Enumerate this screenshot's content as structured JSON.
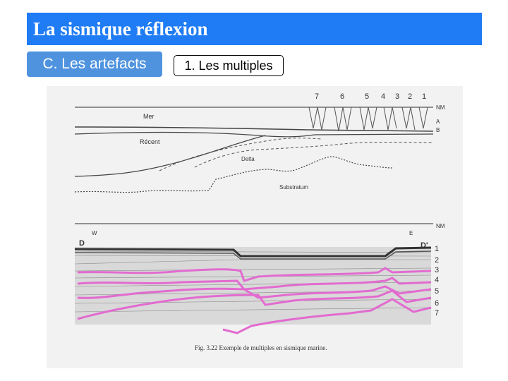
{
  "slide": {
    "title": "La sismique réflexion",
    "section_label": "C. Les artefacts",
    "subsection_label": "1. Les multiples"
  },
  "figure": {
    "top_panel": {
      "trace_numbers": [
        "7",
        "6",
        "5",
        "4",
        "3",
        "2",
        "1"
      ],
      "right_labels": [
        "NM",
        "A",
        "B"
      ],
      "labels": {
        "sea": "Mer",
        "recent": "Récent",
        "delta": "Delta",
        "substratum": "Substratum"
      }
    },
    "bottom_panel": {
      "nm_label": "NM",
      "west_label": "W",
      "east_label": "E",
      "d_label": "D",
      "d_prime_label": "D'",
      "multiple_numbers": [
        "1",
        "2",
        "3",
        "4",
        "5",
        "6",
        "7"
      ]
    },
    "caption": "Fig. 3.22  Exemple de multiples en sismique marine.",
    "colors": {
      "multiple_overlay": "#e26bd0",
      "title_bar": "#1f7cf5",
      "section_tag": "#4f93df"
    }
  }
}
